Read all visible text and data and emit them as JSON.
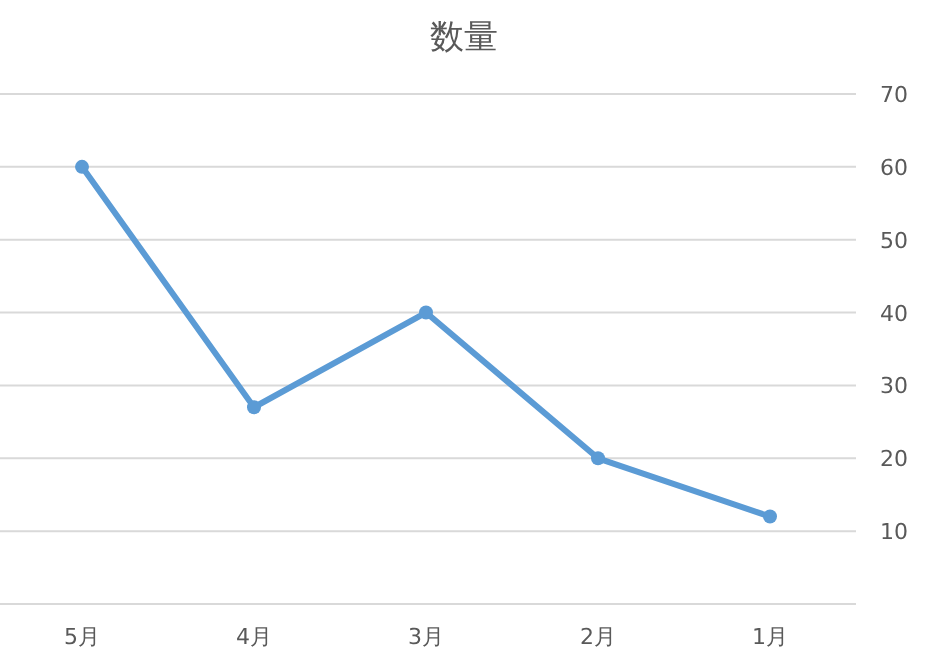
{
  "chart_data": {
    "type": "line",
    "title": "数量",
    "categories": [
      "5月",
      "4月",
      "3月",
      "2月",
      "1月"
    ],
    "series": [
      {
        "color": "#5b9bd5",
        "values": [
          60,
          27,
          40,
          20,
          12
        ]
      }
    ],
    "ylim": [
      0,
      70
    ],
    "yticks": [
      {
        "value": 0,
        "label": null
      },
      10,
      20,
      30,
      40,
      50,
      60,
      70
    ],
    "grid": "y",
    "marker": "circle",
    "line_style": "solid"
  }
}
